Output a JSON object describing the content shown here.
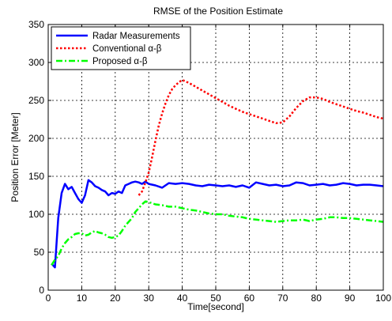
{
  "chart_data": {
    "type": "line",
    "title": "RMSE of the Position Estimate",
    "xlabel": "Time[second]",
    "ylabel": "Position Error [Meter]",
    "xlim": [
      0,
      100
    ],
    "ylim": [
      0,
      350
    ],
    "x_ticks": [
      0,
      10,
      20,
      30,
      40,
      50,
      60,
      70,
      80,
      90,
      100
    ],
    "y_ticks": [
      0,
      50,
      100,
      150,
      200,
      250,
      300,
      350
    ],
    "x_tick_labels": [
      "0",
      "10",
      "20",
      "30",
      "40",
      "50",
      "60",
      "70",
      "80",
      "90",
      "100"
    ],
    "y_tick_labels": [
      "0",
      "50",
      "100",
      "150",
      "200",
      "250",
      "300",
      "350"
    ],
    "grid": true,
    "legend_position": "top-left",
    "series": [
      {
        "name": "Radar Measurements",
        "color": "#0000ff",
        "dash": "solid",
        "x": [
          1,
          2,
          3,
          4,
          5,
          6,
          7,
          8,
          9,
          10,
          11,
          12,
          13,
          14,
          15,
          16,
          17,
          18,
          19,
          20,
          21,
          22,
          23,
          24,
          25,
          26,
          27,
          28,
          29,
          30,
          32,
          34,
          36,
          38,
          40,
          42,
          44,
          46,
          48,
          50,
          52,
          54,
          56,
          58,
          60,
          62,
          64,
          66,
          68,
          70,
          72,
          74,
          76,
          78,
          80,
          82,
          84,
          86,
          88,
          90,
          92,
          94,
          96,
          98,
          100
        ],
        "y": [
          35,
          30,
          95,
          128,
          140,
          133,
          136,
          128,
          120,
          115,
          125,
          145,
          142,
          137,
          135,
          132,
          130,
          125,
          128,
          127,
          130,
          128,
          138,
          140,
          142,
          143,
          142,
          140,
          143,
          140,
          138,
          135,
          141,
          140,
          141,
          140,
          138,
          137,
          139,
          138,
          137,
          138,
          136,
          138,
          135,
          142,
          140,
          138,
          139,
          137,
          138,
          142,
          141,
          138,
          139,
          140,
          138,
          139,
          141,
          140,
          138,
          139,
          139,
          138,
          137
        ]
      },
      {
        "name": "Conventional α-β",
        "color": "#ff0000",
        "dash": "dotted",
        "x": [
          27,
          28,
          29,
          30,
          31,
          32,
          33,
          34,
          35,
          36,
          37,
          38,
          39,
          40,
          42,
          44,
          46,
          48,
          50,
          52,
          54,
          56,
          58,
          60,
          62,
          64,
          66,
          68,
          70,
          72,
          74,
          76,
          78,
          80,
          82,
          84,
          86,
          88,
          90,
          92,
          94,
          96,
          98,
          100
        ],
        "y": [
          125,
          130,
          142,
          155,
          175,
          197,
          217,
          233,
          246,
          257,
          265,
          270,
          274,
          277,
          273,
          268,
          263,
          258,
          253,
          248,
          243,
          239,
          235,
          232,
          229,
          226,
          223,
          220,
          221,
          229,
          240,
          249,
          254,
          254,
          252,
          248,
          245,
          242,
          239,
          236,
          234,
          231,
          228,
          226
        ]
      },
      {
        "name": "Proposed α-β",
        "color": "#00ff00",
        "dash": "dashdot",
        "x": [
          1,
          2,
          3,
          4,
          5,
          6,
          7,
          8,
          9,
          10,
          11,
          12,
          13,
          14,
          15,
          16,
          17,
          18,
          19,
          20,
          21,
          22,
          23,
          24,
          25,
          26,
          27,
          28,
          29,
          30,
          32,
          34,
          36,
          38,
          40,
          42,
          44,
          46,
          48,
          50,
          52,
          54,
          56,
          58,
          60,
          62,
          64,
          66,
          68,
          70,
          72,
          74,
          76,
          78,
          80,
          82,
          84,
          86,
          88,
          90,
          92,
          94,
          96,
          98,
          100
        ],
        "y": [
          33,
          40,
          45,
          55,
          62,
          67,
          70,
          74,
          75,
          75,
          72,
          73,
          76,
          78,
          76,
          75,
          73,
          70,
          69,
          70,
          72,
          78,
          85,
          90,
          95,
          103,
          108,
          113,
          117,
          116,
          113,
          112,
          110,
          110,
          108,
          106,
          105,
          103,
          101,
          100,
          100,
          98,
          97,
          96,
          94,
          93,
          92,
          91,
          90,
          91,
          92,
          92,
          93,
          91,
          93,
          94,
          96,
          96,
          95,
          95,
          94,
          93,
          92,
          91,
          90
        ]
      }
    ]
  }
}
